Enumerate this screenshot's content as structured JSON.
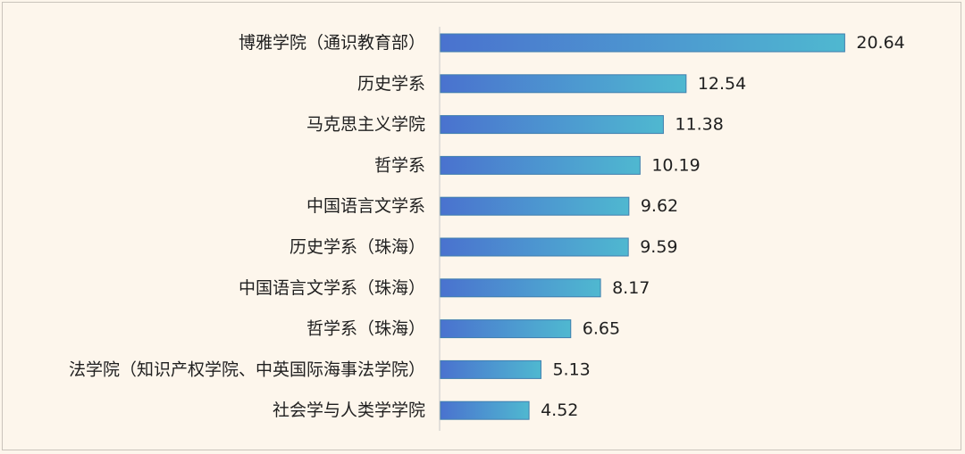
{
  "chart_data": {
    "type": "bar",
    "orientation": "horizontal",
    "title": "",
    "xlabel": "",
    "ylabel": "",
    "xlim": [
      0,
      21.9
    ],
    "grid": false,
    "legend": "none",
    "categories": [
      "博雅学院（通识教育部）",
      "历史学系",
      "马克思主义学院",
      "哲学系",
      "中国语言文学系",
      "历史学系（珠海）",
      "中国语言文学系（珠海）",
      "哲学系（珠海）",
      "法学院（知识产权学院、中英国际海事法学院）",
      "社会学与人类学学院"
    ],
    "values": [
      20.64,
      12.54,
      11.38,
      10.19,
      9.62,
      9.59,
      8.17,
      6.65,
      5.13,
      4.52
    ],
    "value_labels": [
      "20.64",
      "12.54",
      "11.38",
      "10.19",
      "9.62",
      "9.59",
      "8.17",
      "6.65",
      "5.13",
      "4.52"
    ],
    "colors": {
      "bar_start": "#4a72cf",
      "bar_end": "#4fb8d0",
      "bar_border": "#3f7fae",
      "axis": "#c8c8c8",
      "background": "#fdf6ec"
    }
  }
}
